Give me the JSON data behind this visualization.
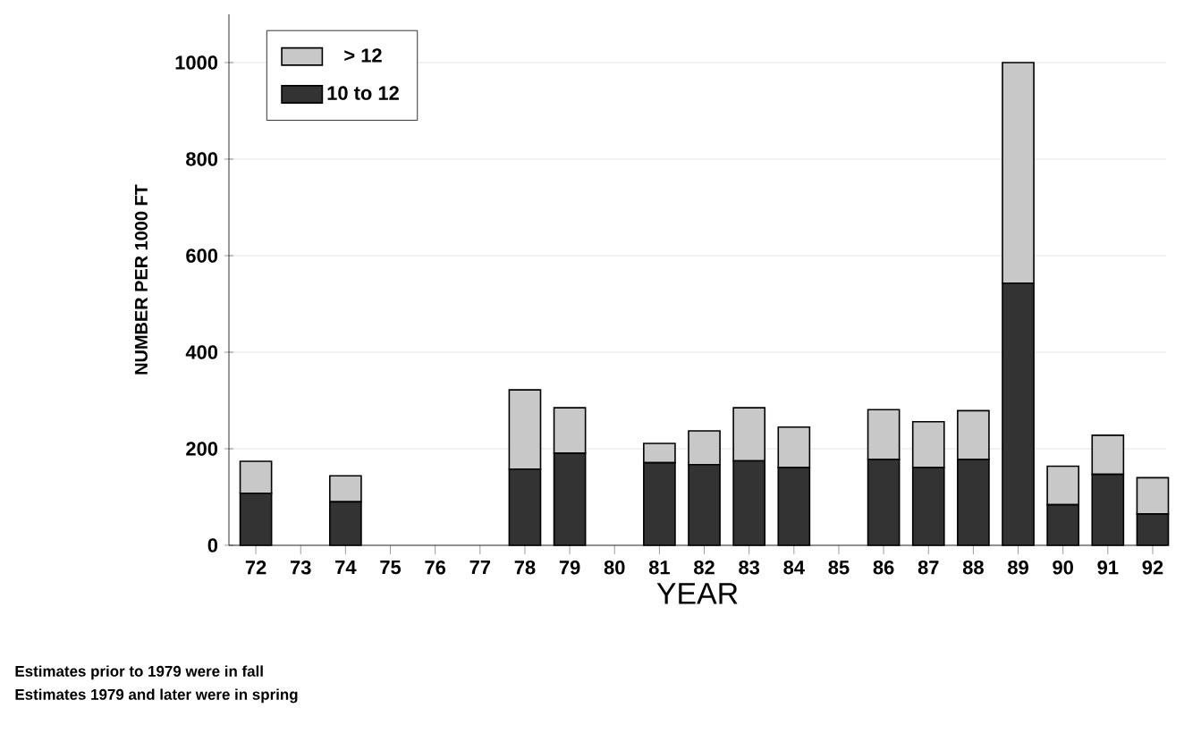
{
  "chart_data": {
    "type": "bar",
    "stacked": true,
    "xlabel": "YEAR",
    "ylabel": "NUMBER PER 1000 FT",
    "categories": [
      "72",
      "73",
      "74",
      "75",
      "76",
      "77",
      "78",
      "79",
      "80",
      "81",
      "82",
      "83",
      "84",
      "85",
      "86",
      "87",
      "88",
      "89",
      "90",
      "91",
      "92"
    ],
    "series": [
      {
        "name": "10 to 12",
        "color": "#333333",
        "values": [
          108,
          0,
          90,
          0,
          0,
          0,
          158,
          191,
          0,
          171,
          167,
          175,
          161,
          0,
          178,
          161,
          178,
          543,
          84,
          147,
          65
        ]
      },
      {
        "name": "> 12",
        "color": "#c8c8c8",
        "values": [
          66,
          0,
          54,
          0,
          0,
          0,
          164,
          94,
          0,
          40,
          70,
          110,
          84,
          0,
          103,
          95,
          101,
          457,
          80,
          81,
          75
        ]
      }
    ],
    "ylim": [
      0,
      1100
    ],
    "yticks": [
      0,
      200,
      400,
      600,
      800,
      1000
    ],
    "grid": "y",
    "legend": "top left",
    "annotations": [
      "Estimates prior to 1979 were in fall",
      "Estimates 1979 and later were in spring"
    ]
  }
}
